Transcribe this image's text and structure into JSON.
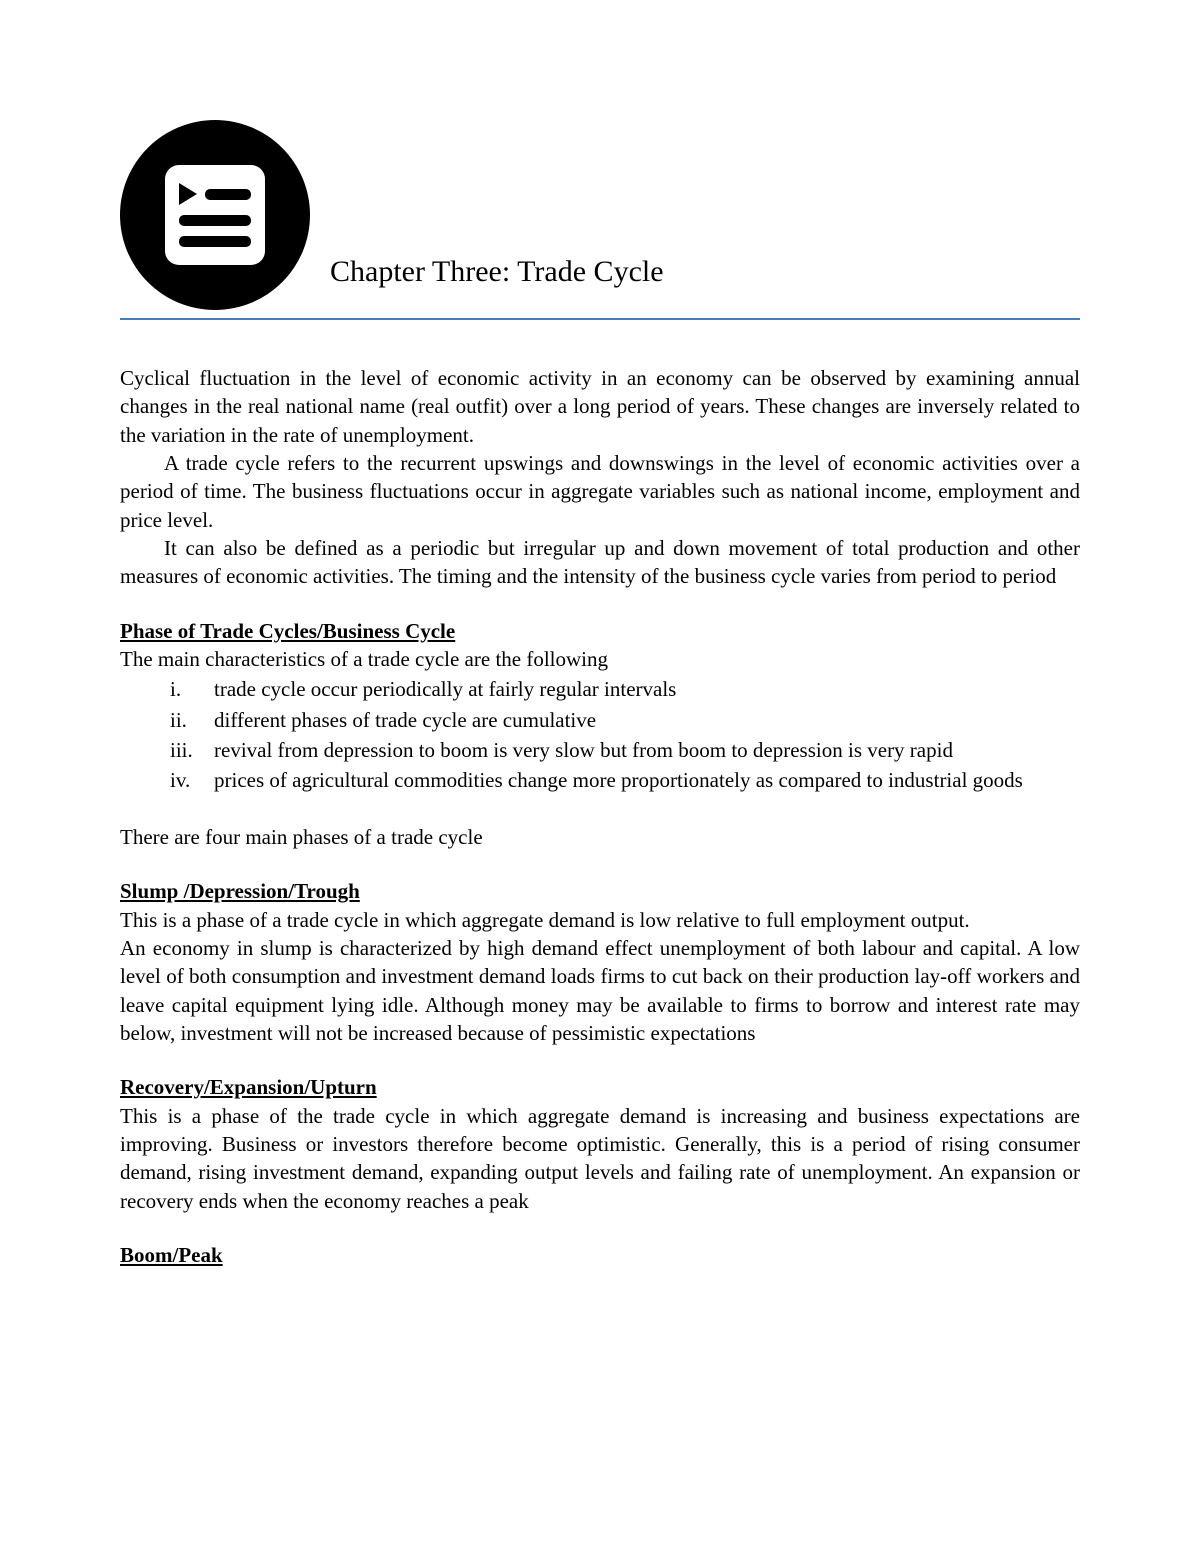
{
  "chapter_title": "Chapter Three: Trade Cycle",
  "intro": {
    "p1": "Cyclical fluctuation in the level of economic activity in an economy can be observed by examining annual changes in the real national name (real outfit) over a long period of years. These changes are inversely related to the variation in the rate of unemployment.",
    "p2": "A trade cycle refers to the recurrent upswings and downswings in the level of economic activities over a period of time. The business fluctuations occur in aggregate variables such as national income, employment and price level.",
    "p3": "It can also be defined as a periodic but irregular up and down movement of total production and other measures of economic activities. The timing and the intensity of the business cycle varies from period to period"
  },
  "phase_heading": "Phase of Trade Cycles/Business Cycle",
  "phase_intro": "The main characteristics of a trade cycle are the following",
  "characteristics": [
    "trade cycle occur periodically at fairly regular intervals",
    "different phases of trade cycle are cumulative",
    "revival from depression to boom is very slow but from boom to depression is very rapid",
    "prices of agricultural commodities change more  proportionately  as compared to industrial goods"
  ],
  "four_phases_line": "There are four main phases of a trade cycle",
  "slump": {
    "heading": "Slump /Depression/Trough",
    "p1": "This is a phase of a trade cycle in which aggregate demand is low relative to full employment output.",
    "p2": "An economy in slump is characterized by high demand effect unemployment of both labour and capital. A low level of both consumption and investment demand loads firms to cut back on their production lay-off workers and leave capital equipment lying idle. Although money may be available to firms to borrow and interest rate may below, investment will not be increased because of pessimistic expectations"
  },
  "recovery": {
    "heading": "Recovery/Expansion/Upturn",
    "p1": "This is a phase of the trade cycle in which aggregate demand is increasing and business expectations are improving. Business or investors therefore become optimistic. Generally, this is a period of rising consumer demand, rising investment demand, expanding output levels and failing rate of unemployment. An expansion or recovery ends when the economy reaches a peak"
  },
  "boom": {
    "heading": "Boom/Peak"
  },
  "romans": [
    "i.",
    "ii.",
    "iii.",
    "iv."
  ]
}
